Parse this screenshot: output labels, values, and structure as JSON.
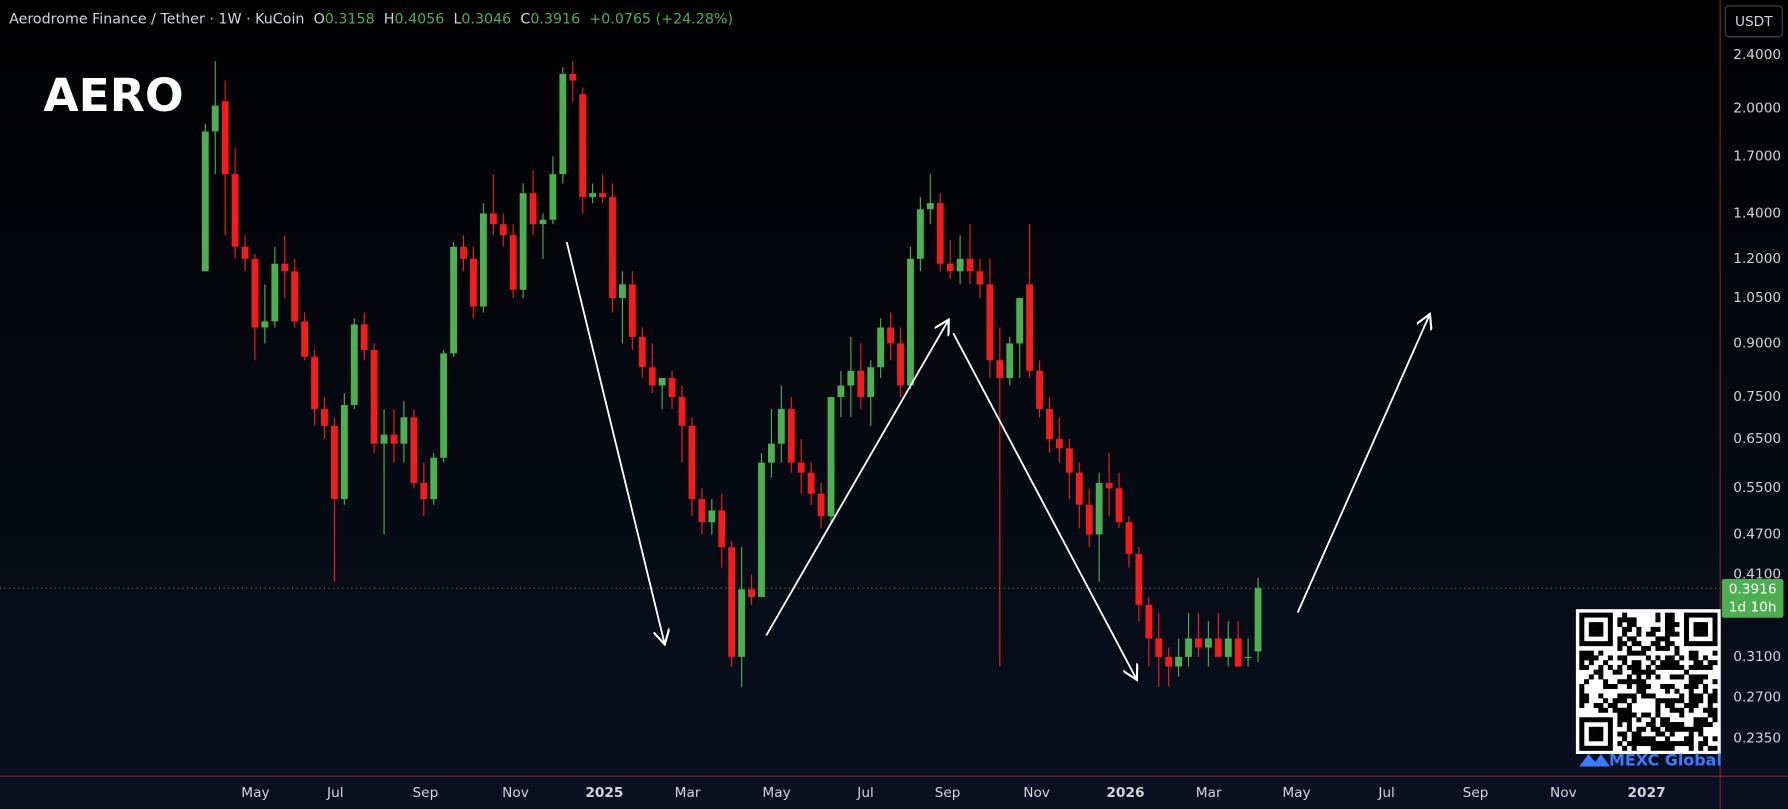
{
  "chart_data": {
    "type": "candlestick",
    "title": "Aerodrome Finance / Tether · 1W · KuCoin",
    "ohlc_labels": [
      "O",
      "H",
      "L",
      "C"
    ],
    "change": "+0.0765 (+24.28%)",
    "watermark": "AERO",
    "currency": "USDT",
    "countdown": "1d 10h",
    "brand": "MEXC Global",
    "log_scale": true,
    "grid": false,
    "up_color": "#4caf50",
    "down_color": "#f21c1c",
    "ylim": [
      0.207,
      2.89
    ],
    "yticks": [
      {
        "value": 2.4,
        "label": "2.4000"
      },
      {
        "value": 2.0,
        "label": "2.0000"
      },
      {
        "value": 1.7,
        "label": "1.7000"
      },
      {
        "value": 1.4,
        "label": "1.4000"
      },
      {
        "value": 1.2,
        "label": "1.2000"
      },
      {
        "value": 1.05,
        "label": "1.0500"
      },
      {
        "value": 0.9,
        "label": "0.9000"
      },
      {
        "value": 0.75,
        "label": "0.7500"
      },
      {
        "value": 0.65,
        "label": "0.6500"
      },
      {
        "value": 0.55,
        "label": "0.5500"
      },
      {
        "value": 0.47,
        "label": "0.4700"
      },
      {
        "value": 0.41,
        "label": "0.4100"
      },
      {
        "value": 0.31,
        "label": "0.3100"
      },
      {
        "value": 0.27,
        "label": "0.2700"
      },
      {
        "value": 0.235,
        "label": "0.2350"
      }
    ],
    "xlim": [
      -20.67,
      152.47
    ],
    "xticks": [
      {
        "value": 5.05,
        "label": "May"
      },
      {
        "value": 13.09,
        "label": "Jul"
      },
      {
        "value": 22.16,
        "label": "Sep"
      },
      {
        "value": 31.23,
        "label": "Nov"
      },
      {
        "value": 40.18,
        "label": "2025"
      },
      {
        "value": 48.56,
        "label": "Mar"
      },
      {
        "value": 57.52,
        "label": "May"
      },
      {
        "value": 66.48,
        "label": "Jul"
      },
      {
        "value": 74.74,
        "label": "Sep"
      },
      {
        "value": 83.7,
        "label": "Nov"
      },
      {
        "value": 92.65,
        "label": "2026"
      },
      {
        "value": 101.03,
        "label": "Mar"
      },
      {
        "value": 109.87,
        "label": "May"
      },
      {
        "value": 118.94,
        "label": "Jul"
      },
      {
        "value": 127.9,
        "label": "Sep"
      },
      {
        "value": 136.74,
        "label": "Nov"
      },
      {
        "value": 145.12,
        "label": "2027"
      }
    ],
    "open": [
      1.15,
      1.85,
      2.05,
      1.6,
      1.25,
      1.2,
      0.95,
      0.97,
      1.18,
      1.15,
      0.97,
      0.86,
      0.72,
      0.68,
      0.53,
      0.73,
      0.96,
      0.88,
      0.64,
      0.66,
      0.64,
      0.7,
      0.56,
      0.53,
      0.61,
      0.87,
      1.25,
      1.2,
      1.02,
      1.4,
      1.35,
      1.3,
      1.08,
      1.5,
      1.35,
      1.37,
      1.6,
      2.25,
      2.1,
      1.48,
      1.5,
      1.48,
      1.05,
      1.1,
      0.92,
      0.83,
      0.78,
      0.8,
      0.75,
      0.68,
      0.53,
      0.49,
      0.51,
      0.45,
      0.31,
      0.39,
      0.38,
      0.6,
      0.64,
      0.72,
      0.6,
      0.58,
      0.54,
      0.5,
      0.75,
      0.78,
      0.82,
      0.75,
      0.83,
      0.95,
      0.9,
      0.78,
      1.2,
      1.42,
      1.45,
      1.18,
      1.15,
      1.2,
      1.15,
      1.1,
      0.85,
      0.8,
      0.9,
      1.1,
      0.82,
      0.72,
      0.65,
      0.63,
      0.58,
      0.52,
      0.47,
      0.56,
      0.55,
      0.49,
      0.44,
      0.37,
      0.33,
      0.31,
      0.3,
      0.31,
      0.33,
      0.32,
      0.33,
      0.31,
      0.33,
      0.31,
      0.3158
    ],
    "high": [
      1.9,
      2.35,
      2.2,
      1.75,
      1.3,
      1.22,
      1.1,
      1.25,
      1.3,
      1.2,
      1.0,
      0.88,
      0.75,
      0.7,
      0.76,
      0.98,
      1.0,
      0.9,
      0.72,
      0.72,
      0.74,
      0.72,
      0.6,
      0.62,
      0.88,
      1.27,
      1.3,
      1.25,
      1.45,
      1.6,
      1.4,
      1.35,
      1.55,
      1.62,
      1.4,
      1.7,
      2.3,
      2.35,
      2.15,
      1.55,
      1.6,
      1.55,
      1.15,
      1.15,
      0.95,
      0.9,
      0.8,
      0.82,
      0.78,
      0.7,
      0.55,
      0.53,
      0.54,
      0.46,
      0.45,
      0.41,
      0.62,
      0.72,
      0.78,
      0.75,
      0.65,
      0.6,
      0.56,
      0.75,
      0.82,
      0.92,
      0.9,
      0.85,
      0.98,
      1.0,
      0.95,
      1.25,
      1.48,
      1.6,
      1.5,
      1.28,
      1.3,
      1.35,
      1.2,
      1.2,
      0.95,
      0.92,
      1.05,
      1.35,
      0.85,
      0.75,
      0.7,
      0.65,
      0.6,
      0.55,
      0.58,
      0.62,
      0.58,
      0.5,
      0.45,
      0.38,
      0.36,
      0.32,
      0.33,
      0.36,
      0.36,
      0.35,
      0.36,
      0.35,
      0.35,
      0.33,
      0.4056
    ],
    "low": [
      1.15,
      1.6,
      1.3,
      1.2,
      1.15,
      0.85,
      0.9,
      0.95,
      1.05,
      0.95,
      0.85,
      0.68,
      0.65,
      0.4,
      0.52,
      0.72,
      0.85,
      0.62,
      0.47,
      0.6,
      0.6,
      0.55,
      0.5,
      0.52,
      0.6,
      0.86,
      1.15,
      0.98,
      1.0,
      1.3,
      1.25,
      1.05,
      1.05,
      1.3,
      1.2,
      1.35,
      1.55,
      2.05,
      1.4,
      1.45,
      1.45,
      1.0,
      0.9,
      0.88,
      0.8,
      0.76,
      0.72,
      0.72,
      0.6,
      0.5,
      0.47,
      0.47,
      0.42,
      0.3,
      0.28,
      0.37,
      0.38,
      0.57,
      0.6,
      0.58,
      0.54,
      0.52,
      0.48,
      0.49,
      0.7,
      0.7,
      0.72,
      0.68,
      0.8,
      0.85,
      0.75,
      0.77,
      1.15,
      1.35,
      1.15,
      1.12,
      1.1,
      1.1,
      1.05,
      0.8,
      0.3,
      0.78,
      0.8,
      0.8,
      0.7,
      0.62,
      0.6,
      0.53,
      0.48,
      0.45,
      0.4,
      0.5,
      0.48,
      0.42,
      0.35,
      0.3,
      0.28,
      0.28,
      0.29,
      0.3,
      0.31,
      0.3,
      0.31,
      0.3,
      0.3,
      0.3,
      0.3046
    ],
    "close": [
      1.85,
      2.02,
      1.6,
      1.25,
      1.2,
      0.95,
      0.97,
      1.18,
      1.15,
      0.97,
      0.86,
      0.72,
      0.68,
      0.53,
      0.73,
      0.96,
      0.88,
      0.64,
      0.66,
      0.64,
      0.7,
      0.56,
      0.53,
      0.61,
      0.87,
      1.25,
      1.2,
      1.02,
      1.4,
      1.35,
      1.3,
      1.08,
      1.5,
      1.35,
      1.37,
      1.6,
      2.25,
      2.2,
      1.48,
      1.5,
      1.48,
      1.05,
      1.1,
      0.92,
      0.83,
      0.78,
      0.8,
      0.75,
      0.68,
      0.53,
      0.49,
      0.51,
      0.45,
      0.31,
      0.39,
      0.38,
      0.6,
      0.64,
      0.72,
      0.6,
      0.58,
      0.54,
      0.5,
      0.75,
      0.78,
      0.82,
      0.75,
      0.83,
      0.95,
      0.9,
      0.78,
      1.2,
      1.42,
      1.45,
      1.18,
      1.15,
      1.2,
      1.15,
      1.1,
      0.85,
      0.8,
      0.9,
      1.05,
      0.82,
      0.72,
      0.65,
      0.63,
      0.58,
      0.52,
      0.47,
      0.56,
      0.55,
      0.49,
      0.44,
      0.37,
      0.33,
      0.31,
      0.3,
      0.31,
      0.33,
      0.32,
      0.33,
      0.31,
      0.33,
      0.3,
      0.31,
      0.3916
    ]
  }
}
